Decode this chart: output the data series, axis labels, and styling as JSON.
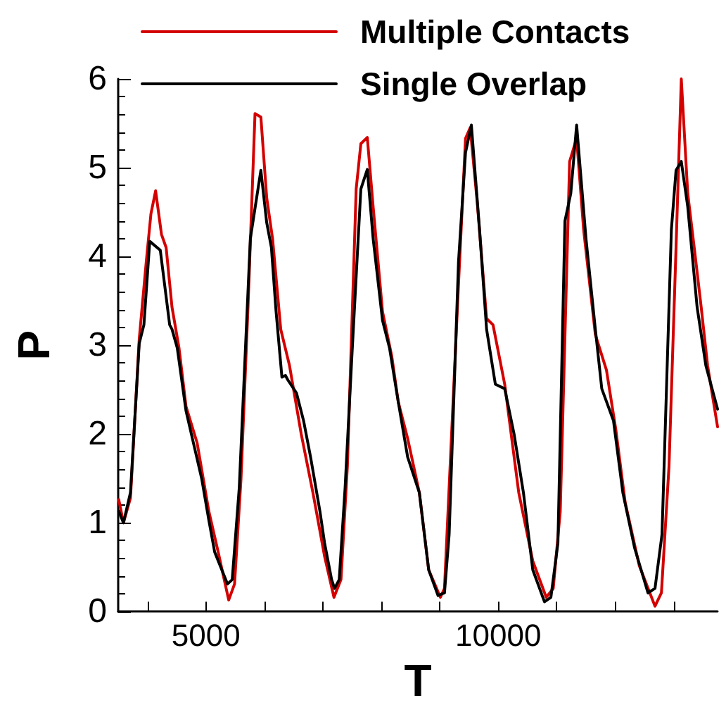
{
  "chart_data": {
    "type": "line",
    "xlabel": "T",
    "ylabel": "P",
    "xlim": [
      3500,
      13750
    ],
    "ylim": [
      0,
      6
    ],
    "xticks": [
      {
        "value": 4000,
        "label": null
      },
      5000,
      {
        "value": 6000,
        "label": null
      },
      {
        "value": 7000,
        "label": null
      },
      {
        "value": 8000,
        "label": null
      },
      {
        "value": 9000,
        "label": null
      },
      10000,
      {
        "value": 11000,
        "label": null
      },
      {
        "value": 12000,
        "label": null
      },
      {
        "value": 13000,
        "label": null
      }
    ],
    "yticks": [
      0,
      1,
      2,
      3,
      4,
      5,
      6
    ],
    "grid": false,
    "legend": "top right",
    "marker": "none",
    "line_style": "solid",
    "series": [
      {
        "name": "Multiple Contacts",
        "color": "#d40000",
        "x": [
          3510,
          3590,
          3710,
          3860,
          3980,
          4060,
          4140,
          4240,
          4320,
          4420,
          4540,
          4660,
          4850,
          5050,
          5210,
          5390,
          5490,
          5600,
          5720,
          5840,
          5940,
          6040,
          6140,
          6280,
          6430,
          6630,
          6830,
          7030,
          7190,
          7310,
          7420,
          7570,
          7650,
          7760,
          7860,
          8020,
          8180,
          8290,
          8450,
          8650,
          8810,
          9010,
          9080,
          9320,
          9440,
          9520,
          9640,
          9800,
          9910,
          10110,
          10350,
          10590,
          10820,
          10940,
          11060,
          11220,
          11340,
          11460,
          11660,
          11850,
          12010,
          12170,
          12410,
          12680,
          12790,
          12920,
          13040,
          13130,
          13240,
          13360,
          13470,
          13580,
          13750
        ],
        "values": [
          1.26,
          1.0,
          1.28,
          3.07,
          3.94,
          4.48,
          4.74,
          4.25,
          4.1,
          3.43,
          2.97,
          2.31,
          1.9,
          1.13,
          0.67,
          0.13,
          0.31,
          1.49,
          3.43,
          5.61,
          5.57,
          4.66,
          4.2,
          3.18,
          2.77,
          2.0,
          1.34,
          0.62,
          0.16,
          0.36,
          1.64,
          4.76,
          5.27,
          5.34,
          4.56,
          3.38,
          2.87,
          2.36,
          1.95,
          1.34,
          0.47,
          0.16,
          0.26,
          3.69,
          5.33,
          5.45,
          4.61,
          3.3,
          3.23,
          2.56,
          1.34,
          0.57,
          0.16,
          0.26,
          1.13,
          5.07,
          5.33,
          4.3,
          3.12,
          2.72,
          2.05,
          1.23,
          0.52,
          0.06,
          0.21,
          1.64,
          4.1,
          6.0,
          4.71,
          4.05,
          3.43,
          2.77,
          2.08
        ]
      },
      {
        "name": "Single Overlap",
        "color": "#000000",
        "x": [
          3510,
          3590,
          3710,
          3860,
          3940,
          4040,
          4220,
          4380,
          4420,
          4510,
          4660,
          4930,
          5050,
          5150,
          5370,
          5450,
          5570,
          5760,
          5940,
          6040,
          6120,
          6200,
          6300,
          6360,
          6400,
          6550,
          6670,
          6790,
          6950,
          7030,
          7150,
          7200,
          7280,
          7380,
          7500,
          7650,
          7760,
          7860,
          8020,
          8140,
          8290,
          8450,
          8650,
          8810,
          8970,
          9080,
          9160,
          9320,
          9440,
          9540,
          9680,
          9800,
          9950,
          10110,
          10270,
          10430,
          10590,
          10790,
          10900,
          11020,
          11140,
          11240,
          11340,
          11500,
          11660,
          11770,
          11970,
          12130,
          12330,
          12560,
          12680,
          12800,
          12960,
          13040,
          13130,
          13240,
          13400,
          13550,
          13750
        ],
        "values": [
          1.13,
          1.0,
          1.34,
          3.02,
          3.23,
          4.17,
          4.07,
          3.23,
          3.18,
          2.97,
          2.26,
          1.49,
          1.03,
          0.67,
          0.31,
          0.36,
          1.39,
          4.2,
          4.97,
          4.38,
          4.1,
          3.38,
          2.64,
          2.66,
          2.61,
          2.46,
          2.15,
          1.74,
          1.13,
          0.77,
          0.36,
          0.26,
          0.36,
          1.39,
          2.92,
          4.76,
          4.98,
          4.2,
          3.28,
          2.97,
          2.36,
          1.74,
          1.34,
          0.47,
          0.18,
          0.21,
          0.87,
          3.94,
          5.17,
          5.48,
          4.3,
          3.18,
          2.56,
          2.51,
          2.0,
          1.34,
          0.47,
          0.11,
          0.16,
          0.77,
          4.4,
          4.71,
          5.48,
          4.2,
          3.18,
          2.51,
          2.15,
          1.34,
          0.72,
          0.21,
          0.26,
          0.87,
          4.3,
          4.97,
          5.07,
          4.56,
          3.43,
          2.77,
          2.28
        ]
      }
    ]
  }
}
